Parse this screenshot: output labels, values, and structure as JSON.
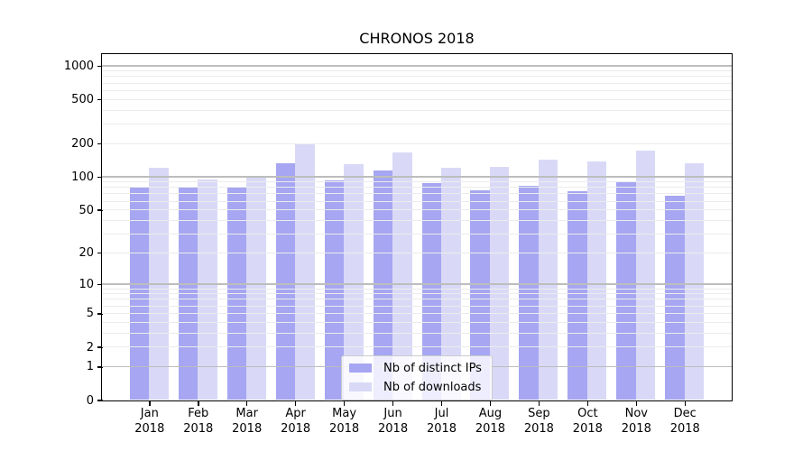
{
  "chart_data": {
    "type": "bar",
    "title": "CHRONOS 2018",
    "categories": [
      "Jan",
      "Feb",
      "Mar",
      "Apr",
      "May",
      "Jun",
      "Jul",
      "Aug",
      "Sep",
      "Oct",
      "Nov",
      "Dec"
    ],
    "x_year_label": "2018",
    "series": [
      {
        "name": "Nb of distinct IPs",
        "color": "#a6a6f2",
        "values": [
          81,
          79,
          82,
          133,
          93,
          114,
          88,
          75,
          83,
          74,
          90,
          67
        ]
      },
      {
        "name": "Nb of downloads",
        "color": "#d9d9f7",
        "values": [
          120,
          95,
          99,
          197,
          131,
          166,
          121,
          124,
          142,
          138,
          172,
          132
        ]
      }
    ],
    "yscale": "symlog",
    "y_ticks": [
      0,
      1,
      2,
      5,
      10,
      20,
      50,
      100,
      200,
      500,
      1000
    ],
    "y_tick_labels": [
      "0",
      "1",
      "2",
      "5",
      "10",
      "20",
      "50",
      "100",
      "200",
      "500",
      "1000"
    ],
    "ylim": [
      0,
      1300
    ],
    "grid": true,
    "legend_position": "lower center",
    "colors": {
      "axis": "#000000",
      "grid_major": "#bdbdbd",
      "grid_minor": "#ececec",
      "background": "#ffffff"
    }
  }
}
